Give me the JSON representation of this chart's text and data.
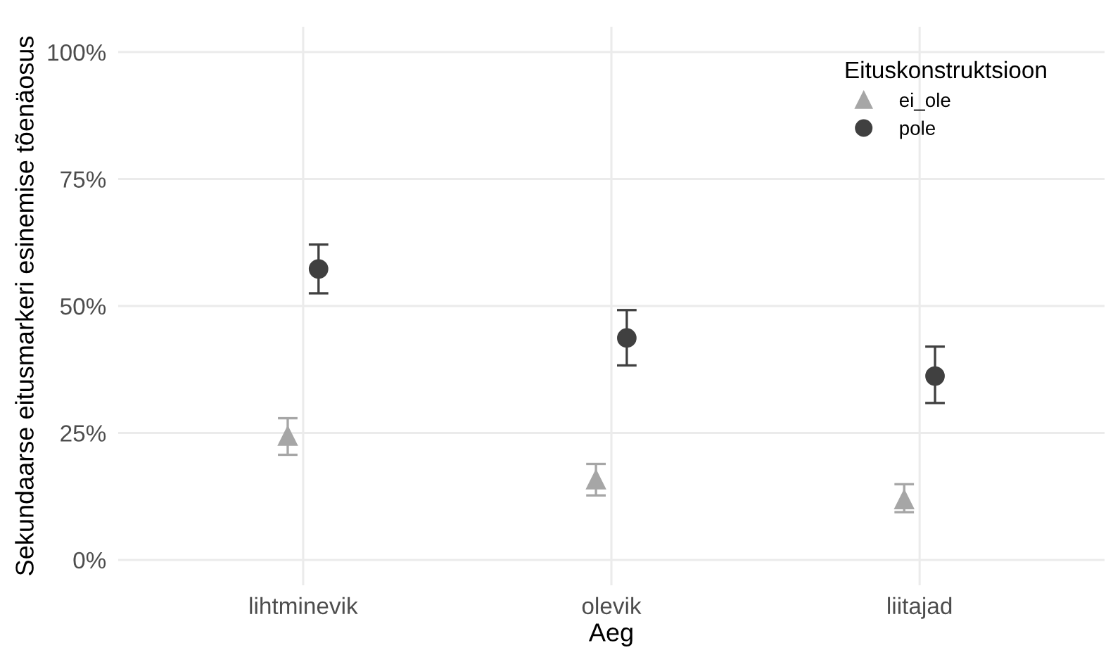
{
  "chart_data": {
    "type": "scatter",
    "xlabel": "Aeg",
    "ylabel": "Sekundaarse eitusmarkeri esinemise tõenäosus",
    "legend_title": "Eituskonstruktsioon",
    "categories": [
      "lihtminevik",
      "olevik",
      "liitajad"
    ],
    "series": [
      {
        "name": "ei_ole",
        "color": "#a6a6a6",
        "marker": "triangle",
        "values": [
          24.4,
          15.8,
          11.9
        ],
        "errors": [
          [
            20.7,
            27.9
          ],
          [
            12.7,
            18.9
          ],
          [
            9.4,
            14.9
          ]
        ]
      },
      {
        "name": "pole",
        "color": "#404040",
        "marker": "circle",
        "values": [
          57.3,
          43.7,
          36.2
        ],
        "errors": [
          [
            52.5,
            62.1
          ],
          [
            38.3,
            49.2
          ],
          [
            30.9,
            42.0
          ]
        ]
      }
    ],
    "ylim": [
      -5,
      105
    ],
    "yticks": [
      {
        "value": 0,
        "label": "0%"
      },
      {
        "value": 25,
        "label": "25%"
      },
      {
        "value": 50,
        "label": "50%"
      },
      {
        "value": 75,
        "label": "75%"
      },
      {
        "value": 100,
        "label": "100%"
      }
    ],
    "grid": true,
    "legend": "top right"
  }
}
